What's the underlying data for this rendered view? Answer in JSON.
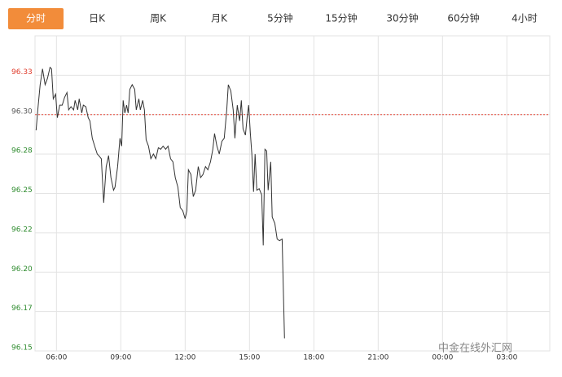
{
  "tabs": [
    "分时",
    "日K",
    "周K",
    "月K",
    "5分钟",
    "15分钟",
    "30分钟",
    "60分钟",
    "4小时"
  ],
  "active_tab": 0,
  "watermark": "中金在线外汇网",
  "chart_data": {
    "type": "line",
    "color": "#333333",
    "ref_line": 96.3,
    "ref_color": "#e84b3c",
    "up_color": "#e03c2c",
    "down_color": "#2e8b2e",
    "grid": true,
    "xlim": [
      5,
      29
    ],
    "xticks": [
      {
        "value": 6,
        "label": "06:00"
      },
      {
        "value": 9,
        "label": "09:00"
      },
      {
        "value": 12,
        "label": "12:00"
      },
      {
        "value": 15,
        "label": "15:00"
      },
      {
        "value": 18,
        "label": "18:00"
      },
      {
        "value": 21,
        "label": "21:00"
      },
      {
        "value": 24,
        "label": "00:00"
      },
      {
        "value": 27,
        "label": "03:00"
      }
    ],
    "ylim": [
      96.15,
      96.35
    ],
    "yticks": [
      {
        "value": 96.15,
        "label": "96.15"
      },
      {
        "value": 96.175,
        "label": "96.17"
      },
      {
        "value": 96.2,
        "label": "96.20"
      },
      {
        "value": 96.225,
        "label": "96.22"
      },
      {
        "value": 96.25,
        "label": "96.25"
      },
      {
        "value": 96.275,
        "label": "96.28"
      },
      {
        "value": 96.3,
        "label": "96.30"
      },
      {
        "value": 96.325,
        "label": "96.33"
      }
    ],
    "x": [
      5.05,
      5.13,
      5.24,
      5.35,
      5.47,
      5.58,
      5.7,
      5.77,
      5.85,
      5.96,
      6.04,
      6.15,
      6.27,
      6.38,
      6.49,
      6.57,
      6.68,
      6.8,
      6.87,
      6.99,
      7.06,
      7.18,
      7.25,
      7.37,
      7.48,
      7.56,
      7.67,
      7.78,
      7.9,
      7.97,
      8.09,
      8.2,
      8.32,
      8.43,
      8.54,
      8.66,
      8.73,
      8.85,
      8.96,
      9.04,
      9.11,
      9.19,
      9.27,
      9.34,
      9.42,
      9.53,
      9.65,
      9.72,
      9.84,
      9.91,
      10.02,
      10.1,
      10.18,
      10.29,
      10.4,
      10.52,
      10.63,
      10.75,
      10.86,
      10.97,
      11.09,
      11.2,
      11.32,
      11.43,
      11.54,
      11.66,
      11.77,
      11.89,
      12.0,
      12.08,
      12.15,
      12.27,
      12.38,
      12.49,
      12.61,
      12.72,
      12.83,
      12.95,
      13.06,
      13.18,
      13.29,
      13.37,
      13.48,
      13.59,
      13.71,
      13.82,
      13.94,
      14.01,
      14.13,
      14.24,
      14.32,
      14.43,
      14.54,
      14.62,
      14.7,
      14.81,
      14.89,
      14.96,
      15.04,
      15.11,
      15.19,
      15.26,
      15.34,
      15.45,
      15.57,
      15.64,
      15.72,
      15.8,
      15.87,
      15.99,
      16.06,
      16.18,
      16.29,
      16.4,
      16.52,
      16.63
    ],
    "values": [
      96.29,
      96.303,
      96.319,
      96.329,
      96.319,
      96.323,
      96.33,
      96.329,
      96.31,
      96.313,
      96.298,
      96.306,
      96.306,
      96.311,
      96.314,
      96.303,
      96.305,
      96.303,
      96.309,
      96.303,
      96.31,
      96.301,
      96.306,
      96.305,
      96.298,
      96.296,
      96.285,
      96.28,
      96.275,
      96.274,
      96.272,
      96.244,
      96.267,
      96.274,
      96.26,
      96.252,
      96.254,
      96.267,
      96.285,
      96.28,
      96.309,
      96.301,
      96.306,
      96.301,
      96.316,
      96.319,
      96.316,
      96.303,
      96.31,
      96.303,
      96.309,
      96.303,
      96.284,
      96.28,
      96.272,
      96.275,
      96.272,
      96.279,
      96.278,
      96.28,
      96.278,
      96.28,
      96.272,
      96.27,
      96.26,
      96.254,
      96.241,
      96.239,
      96.234,
      96.239,
      96.265,
      96.262,
      96.248,
      96.252,
      96.267,
      96.26,
      96.262,
      96.267,
      96.265,
      96.27,
      96.278,
      96.288,
      96.28,
      96.275,
      96.283,
      96.285,
      96.303,
      96.319,
      96.315,
      96.303,
      96.285,
      96.306,
      96.296,
      96.309,
      96.291,
      96.287,
      96.298,
      96.306,
      96.288,
      96.275,
      96.251,
      96.275,
      96.252,
      96.253,
      96.249,
      96.217,
      96.278,
      96.277,
      96.252,
      96.27,
      96.235,
      96.231,
      96.221,
      96.22,
      96.221,
      96.158
    ]
  }
}
